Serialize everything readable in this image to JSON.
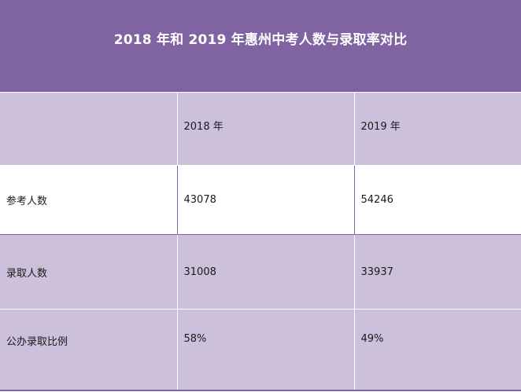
{
  "title": "2018 年和 2019 年惠州中考人数与录取率对比",
  "header": {
    "col0": "",
    "col1": "2018 年",
    "col2": "2019 年"
  },
  "rows": [
    {
      "label": "参考人数",
      "v2018": "43078",
      "v2019": "54246"
    },
    {
      "label": "录取人数",
      "v2018": "31008",
      "v2019": "33937"
    },
    {
      "label": "公办录取比例",
      "v2018": "58%",
      "v2019": "49%"
    }
  ],
  "colors": {
    "header_bg": "#8064a2",
    "band_bg": "#ccc0da",
    "white_bg": "#ffffff"
  }
}
